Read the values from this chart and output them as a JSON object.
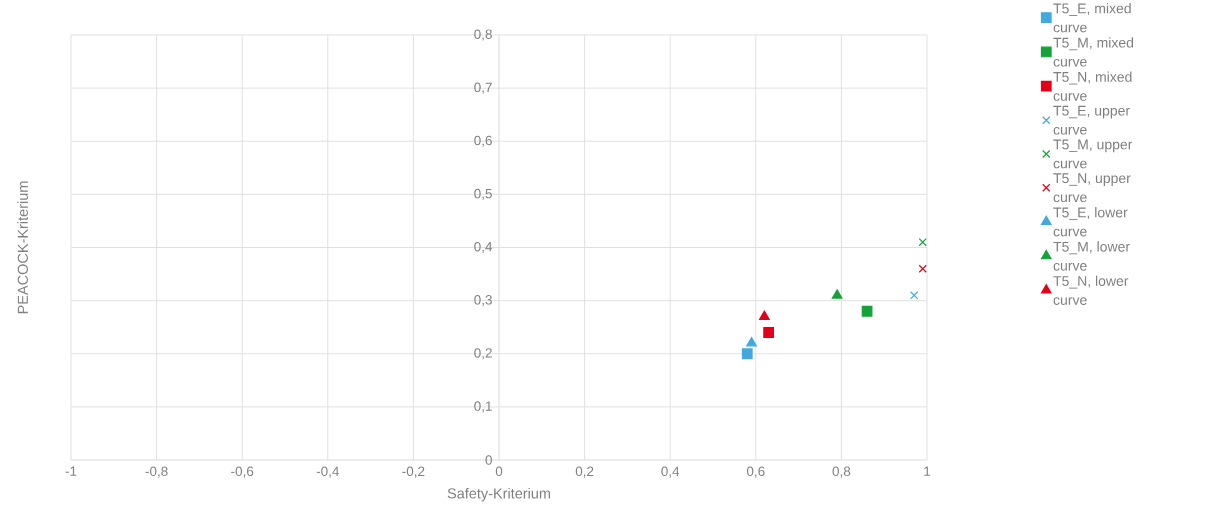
{
  "chart_data": {
    "type": "scatter",
    "xlabel": "Safety-Kriterium",
    "ylabel": "PEACOCK-Kriterium",
    "xlim": [
      -1,
      1
    ],
    "ylim": [
      0,
      0.8
    ],
    "xticks": [
      {
        "value": -1,
        "label": "-1"
      },
      {
        "value": -0.8,
        "label": "-0,8"
      },
      {
        "value": -0.6,
        "label": "-0,6"
      },
      {
        "value": -0.4,
        "label": "-0,4"
      },
      {
        "value": -0.2,
        "label": "-0,2"
      },
      {
        "value": 0,
        "label": "0"
      },
      {
        "value": 0.2,
        "label": "0,2"
      },
      {
        "value": 0.4,
        "label": "0,4"
      },
      {
        "value": 0.6,
        "label": "0,6"
      },
      {
        "value": 0.8,
        "label": "0,8"
      },
      {
        "value": 1,
        "label": "1"
      }
    ],
    "yticks": [
      {
        "value": 0,
        "label": "0"
      },
      {
        "value": 0.1,
        "label": "0,1"
      },
      {
        "value": 0.2,
        "label": "0,2"
      },
      {
        "value": 0.3,
        "label": "0,3"
      },
      {
        "value": 0.4,
        "label": "0,4"
      },
      {
        "value": 0.5,
        "label": "0,5"
      },
      {
        "value": 0.6,
        "label": "0,6"
      },
      {
        "value": 0.7,
        "label": "0,7"
      },
      {
        "value": 0.8,
        "label": "0,8"
      }
    ],
    "grid": true,
    "legend": "right",
    "series": [
      {
        "name": "T5_E, mixed curve",
        "color": "#41a9dd",
        "marker": "square",
        "x": [
          0.58
        ],
        "values": [
          0.2
        ]
      },
      {
        "name": "T5_M, mixed curve",
        "color": "#16a23a",
        "marker": "square",
        "x": [
          0.86
        ],
        "values": [
          0.28
        ]
      },
      {
        "name": "T5_N, mixed curve",
        "color": "#e3001b",
        "marker": "square",
        "x": [
          0.63
        ],
        "values": [
          0.24
        ]
      },
      {
        "name": "T5_E, upper curve",
        "color": "#41a9dd",
        "marker": "cross",
        "x": [
          0.97
        ],
        "values": [
          0.31
        ]
      },
      {
        "name": "T5_M, upper curve",
        "color": "#16a23a",
        "marker": "cross",
        "x": [
          0.99
        ],
        "values": [
          0.41
        ]
      },
      {
        "name": "T5_N, upper curve",
        "color": "#e3001b",
        "marker": "cross",
        "x": [
          0.99
        ],
        "values": [
          0.36
        ]
      },
      {
        "name": "T5_E, lower curve",
        "color": "#41a9dd",
        "marker": "triangle",
        "x": [
          0.59
        ],
        "values": [
          0.22
        ]
      },
      {
        "name": "T5_M, lower curve",
        "color": "#16a23a",
        "marker": "triangle",
        "x": [
          0.79
        ],
        "values": [
          0.31
        ]
      },
      {
        "name": "T5_N, lower curve",
        "color": "#e3001b",
        "marker": "triangle",
        "x": [
          0.62
        ],
        "values": [
          0.27
        ]
      }
    ]
  }
}
